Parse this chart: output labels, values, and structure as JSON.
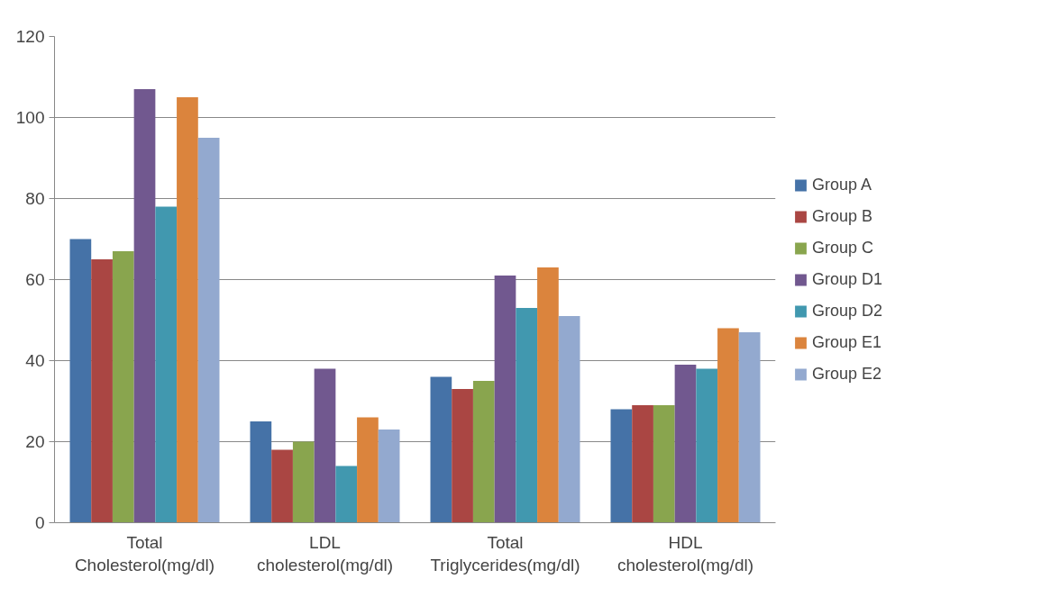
{
  "chart_data": {
    "type": "bar",
    "categories": [
      "Total Cholesterol(mg/dl)",
      "LDL cholesterol(mg/dl)",
      "Total Triglycerides(mg/dl)",
      "HDL cholesterol(mg/dl)"
    ],
    "series": [
      {
        "name": "Group A",
        "color": "#4572a7",
        "values": [
          70,
          25,
          36,
          28
        ]
      },
      {
        "name": "Group B",
        "color": "#aa4643",
        "values": [
          65,
          18,
          33,
          29
        ]
      },
      {
        "name": "Group C",
        "color": "#89a54e",
        "values": [
          67,
          20,
          35,
          29
        ]
      },
      {
        "name": "Group D1",
        "color": "#71588f",
        "values": [
          107,
          38,
          61,
          39
        ]
      },
      {
        "name": "Group D2",
        "color": "#4198af",
        "values": [
          78,
          14,
          53,
          38
        ]
      },
      {
        "name": "Group E1",
        "color": "#db843d",
        "values": [
          105,
          26,
          63,
          48
        ]
      },
      {
        "name": "Group E2",
        "color": "#93a9cf",
        "values": [
          95,
          23,
          51,
          47
        ]
      }
    ],
    "ylim": [
      0,
      120
    ],
    "yticks": [
      0,
      20,
      40,
      60,
      80,
      100,
      120
    ],
    "grid": "y",
    "legend": "right"
  }
}
